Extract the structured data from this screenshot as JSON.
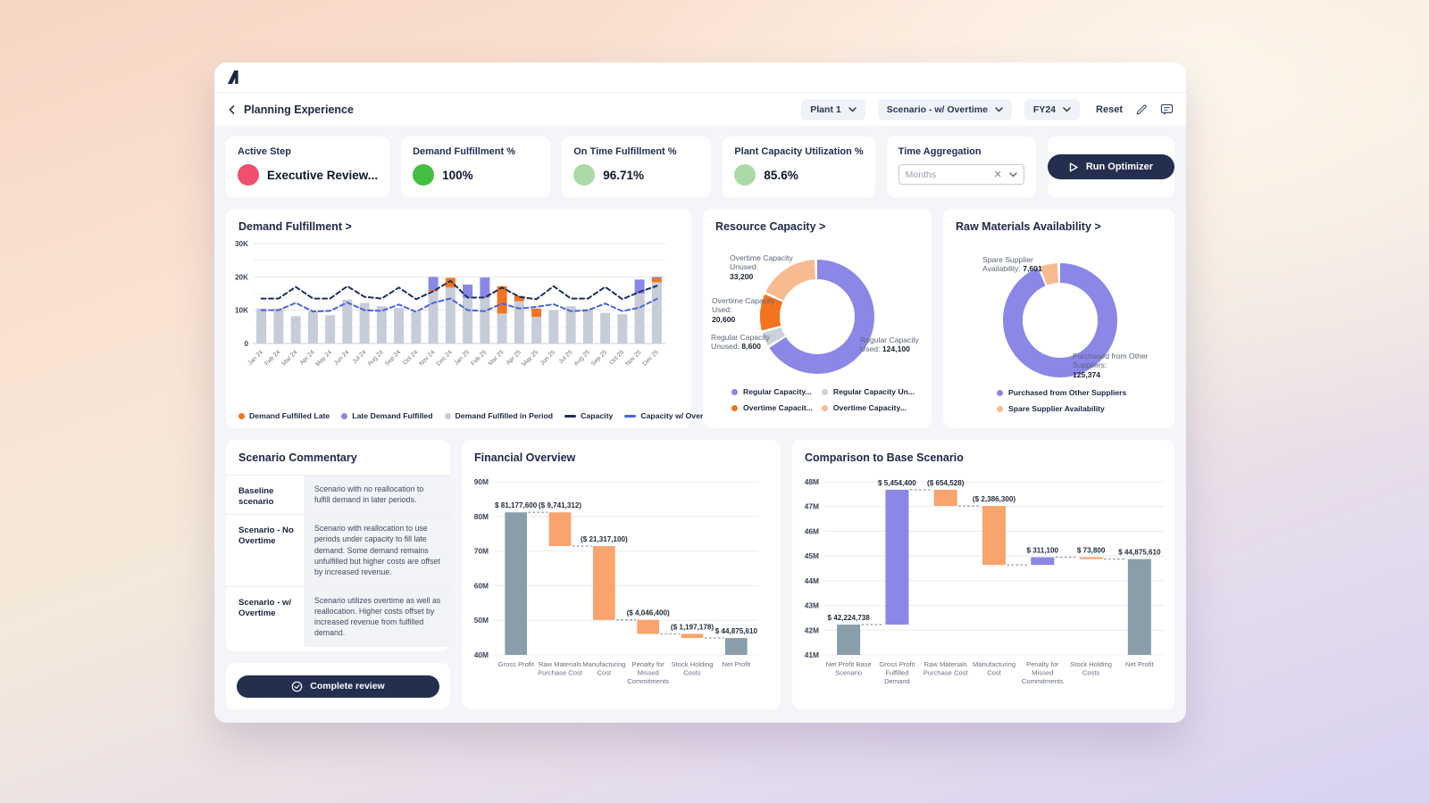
{
  "header": {
    "page_title": "Planning Experience",
    "plant_selector": "Plant 1",
    "scenario_selector": "Scenario - w/ Overtime",
    "period_selector": "FY24",
    "reset_label": "Reset"
  },
  "kpi_cards": [
    {
      "title": "Active Step",
      "value": "Executive Review...",
      "status_color": "#f0506e"
    },
    {
      "title": "Demand Fulfillment %",
      "value": "100%",
      "status_color": "#44bf44"
    },
    {
      "title": "On Time Fulfillment %",
      "value": "96.71%",
      "status_color": "#abdaa6"
    },
    {
      "title": "Plant Capacity Utilization %",
      "value": "85.6%",
      "status_color": "#abdaa6"
    }
  ],
  "time_aggregation": {
    "label": "Time Aggregation",
    "value": "Months",
    "clear_icon": "x",
    "chevron": "down"
  },
  "run_optimizer": {
    "label": "Run Optimizer"
  },
  "scenario_commentary": {
    "title": "Scenario Commentary",
    "rows": [
      {
        "label": "Baseline scenario",
        "text": "Scenario with no reallocation to fulfill demand in later periods."
      },
      {
        "label": "Scenario - No Overtime",
        "text": "Scenario with reallocation to use periods under capacity to fill late demand. Some demand remains unfulfilled but higher costs are offset by increased revenue."
      },
      {
        "label": "Scenario - w/ Overtime",
        "text": "Scenario utilizes overtime as well as reallocation. Higher costs offset by increased revenue from fulfilled demand."
      }
    ]
  },
  "complete_review": {
    "label": "Complete review"
  },
  "chart_data": [
    {
      "id": "demand",
      "type": "bar",
      "title": "Demand Fulfillment >",
      "ylim": [
        0,
        30000
      ],
      "ytick_labels": [
        "0",
        "10K",
        "20K",
        "30K"
      ],
      "categories": [
        "Jan 24",
        "Feb 24",
        "Mar 24",
        "Apr 24",
        "May 24",
        "Jun 24",
        "Jul 24",
        "Aug 24",
        "Sep 24",
        "Oct 24",
        "Nov 24",
        "Dec 24",
        "Jan 25",
        "Feb 25",
        "Mar 25",
        "Apr 25",
        "May 25",
        "Jun 25",
        "Jul 25",
        "Aug 25",
        "Sep 25",
        "Oct 25",
        "Nov 25",
        "Dec 25"
      ],
      "series": [
        {
          "name": "Demand Fulfilled in Period",
          "kind": "bar",
          "color": "#c7cdd7",
          "values": [
            10500,
            10500,
            8200,
            9700,
            8500,
            13200,
            12200,
            11200,
            10700,
            9500,
            15700,
            16800,
            13700,
            13800,
            9000,
            12700,
            8000,
            10000,
            11200,
            10300,
            9200,
            8800,
            15000,
            18400
          ]
        },
        {
          "name": "Demand Fulfilled Late",
          "kind": "bar",
          "color": "#f4731f",
          "values": [
            0,
            0,
            0,
            0,
            0,
            0,
            0,
            0,
            0,
            0,
            400,
            2900,
            0,
            0,
            8200,
            1600,
            2500,
            0,
            0,
            0,
            0,
            0,
            0,
            1300
          ]
        },
        {
          "name": "Late Demand Fulfilled",
          "kind": "bar",
          "color": "#8b87e6",
          "values": [
            0,
            0,
            0,
            0,
            0,
            0,
            0,
            0,
            0,
            0,
            3900,
            0,
            4000,
            6000,
            0,
            0,
            0,
            0,
            0,
            0,
            0,
            0,
            4200,
            300
          ]
        },
        {
          "name": "Capacity",
          "kind": "line",
          "color": "#1e2f5e",
          "values": [
            13500,
            13500,
            17000,
            13500,
            13500,
            17200,
            14000,
            13500,
            16800,
            13300,
            15700,
            18800,
            13800,
            13800,
            16800,
            14000,
            13300,
            17200,
            13500,
            13500,
            17000,
            13300,
            15500,
            17300
          ]
        },
        {
          "name": "Capacity w/ Overtime",
          "kind": "line",
          "color": "#4a63e0",
          "values": [
            10000,
            10000,
            12200,
            9600,
            9800,
            12300,
            10000,
            9800,
            11700,
            9500,
            12200,
            13500,
            10000,
            9700,
            12000,
            10500,
            11000,
            11800,
            9700,
            10000,
            12000,
            9700,
            10800,
            13400
          ]
        }
      ],
      "legend_order": [
        "Demand Fulfilled Late",
        "Late Demand Fulfilled",
        "Demand Fulfilled in Period",
        "Capacity",
        "Capacity w/ Overtime"
      ]
    },
    {
      "id": "resource",
      "type": "pie",
      "title": "Resource Capacity >",
      "slices": [
        {
          "label": "Regular Capacity Used",
          "value": 124100,
          "display": "124,100",
          "callout": "Regular Capacity Used:",
          "color": "#8b87e6"
        },
        {
          "label": "Regular Capacity Unused",
          "value": 8600,
          "display": "8,600",
          "callout": "Regular Capacity Unused:",
          "color": "#ccd2db"
        },
        {
          "label": "Overtime Capacity Used",
          "value": 20600,
          "display": "20,600",
          "callout": "Overtime Capacity Used:",
          "color": "#f4731f"
        },
        {
          "label": "Overtime Capacity Unused",
          "value": 33200,
          "display": "33,200",
          "callout": "Overtime Capacity Unused:",
          "color": "#f8bb8f"
        }
      ],
      "legend": [
        {
          "label": "Regular Capacity...",
          "color": "#8b87e6"
        },
        {
          "label": "Regular Capacity Un...",
          "color": "#ccd2db"
        },
        {
          "label": "Overtime Capacit...",
          "color": "#f4731f"
        },
        {
          "label": "Overtime Capacity...",
          "color": "#f8bb8f"
        }
      ]
    },
    {
      "id": "raw",
      "type": "pie",
      "title": "Raw Materials Availability >",
      "slices": [
        {
          "label": "Purchased from Other Suppliers",
          "value": 125374,
          "display": "125,374",
          "callout": "Purchased from Other Suppliers:",
          "color": "#8b87e6"
        },
        {
          "label": "Spare Supplier Availability",
          "value": 7601,
          "display": "7,601",
          "callout": "Spare Supplier Availability:",
          "color": "#f8bb8f"
        }
      ],
      "legend": [
        {
          "label": "Purchased from Other Suppliers",
          "color": "#8b87e6"
        },
        {
          "label": "Spare Supplier Availability",
          "color": "#f8bb8f"
        }
      ]
    },
    {
      "id": "financial",
      "type": "bar",
      "subtype": "waterfall",
      "title": "Financial Overview",
      "ylim": [
        40,
        90
      ],
      "ytick_step": 10,
      "y_unit": "M",
      "bars": [
        {
          "label": "Gross Profit",
          "display": "$ 81,177,600",
          "from": 40,
          "to": 81.1776,
          "role": "total"
        },
        {
          "label": "Raw Materials Purchase Cost",
          "display": "($ 9,741,312)",
          "from": 81.1776,
          "to": 71.4363,
          "role": "down"
        },
        {
          "label": "Manufacturing Cost",
          "display": "($ 21,317,100)",
          "from": 71.4363,
          "to": 50.1192,
          "role": "down"
        },
        {
          "label": "Penalty for Missed Commitments",
          "display": "($ 4,046,400)",
          "from": 50.1192,
          "to": 46.0728,
          "role": "down"
        },
        {
          "label": "Stock Holding Costs",
          "display": "($ 1,197,178)",
          "from": 46.0728,
          "to": 44.8756,
          "role": "down"
        },
        {
          "label": "Net Profit",
          "display": "$ 44,875,610",
          "from": 40,
          "to": 44.8756,
          "role": "total"
        }
      ],
      "palette": {
        "total": "#8a9dab",
        "down": "#f9a36e",
        "up": "#8b87e6"
      }
    },
    {
      "id": "comparison",
      "type": "bar",
      "subtype": "waterfall",
      "title": "Comparison to Base Scenario",
      "ylim": [
        41,
        48
      ],
      "ytick_step": 1,
      "y_unit": "M",
      "bars": [
        {
          "label": "Net Profit Base Scenario",
          "display": "$ 42,224,738",
          "from": 41,
          "to": 42.2247,
          "role": "total"
        },
        {
          "label": "Gross Profit Fulfilled Demand",
          "display": "$ 5,454,400",
          "from": 42.2247,
          "to": 47.6791,
          "role": "up"
        },
        {
          "label": "Raw Materials Purchase Cost",
          "display": "($ 654,528)",
          "from": 47.0246,
          "to": 47.6791,
          "role": "down"
        },
        {
          "label": "Manufacturing Cost",
          "display": "($ 2,386,300)",
          "from": 44.6383,
          "to": 47.0246,
          "role": "down"
        },
        {
          "label": "Penalty for Missed Commitments",
          "display": "$ 311,100",
          "from": 44.6383,
          "to": 44.9494,
          "role": "up"
        },
        {
          "label": "Stock Holding Costs",
          "display": "$ 73,800",
          "from": 44.8756,
          "to": 44.9494,
          "role": "down"
        },
        {
          "label": "Net Profit",
          "display": "$ 44,875,610",
          "from": 41,
          "to": 44.8756,
          "role": "total"
        }
      ],
      "palette": {
        "total": "#8a9dab",
        "down": "#f9a36e",
        "up": "#8b87e6"
      }
    }
  ]
}
